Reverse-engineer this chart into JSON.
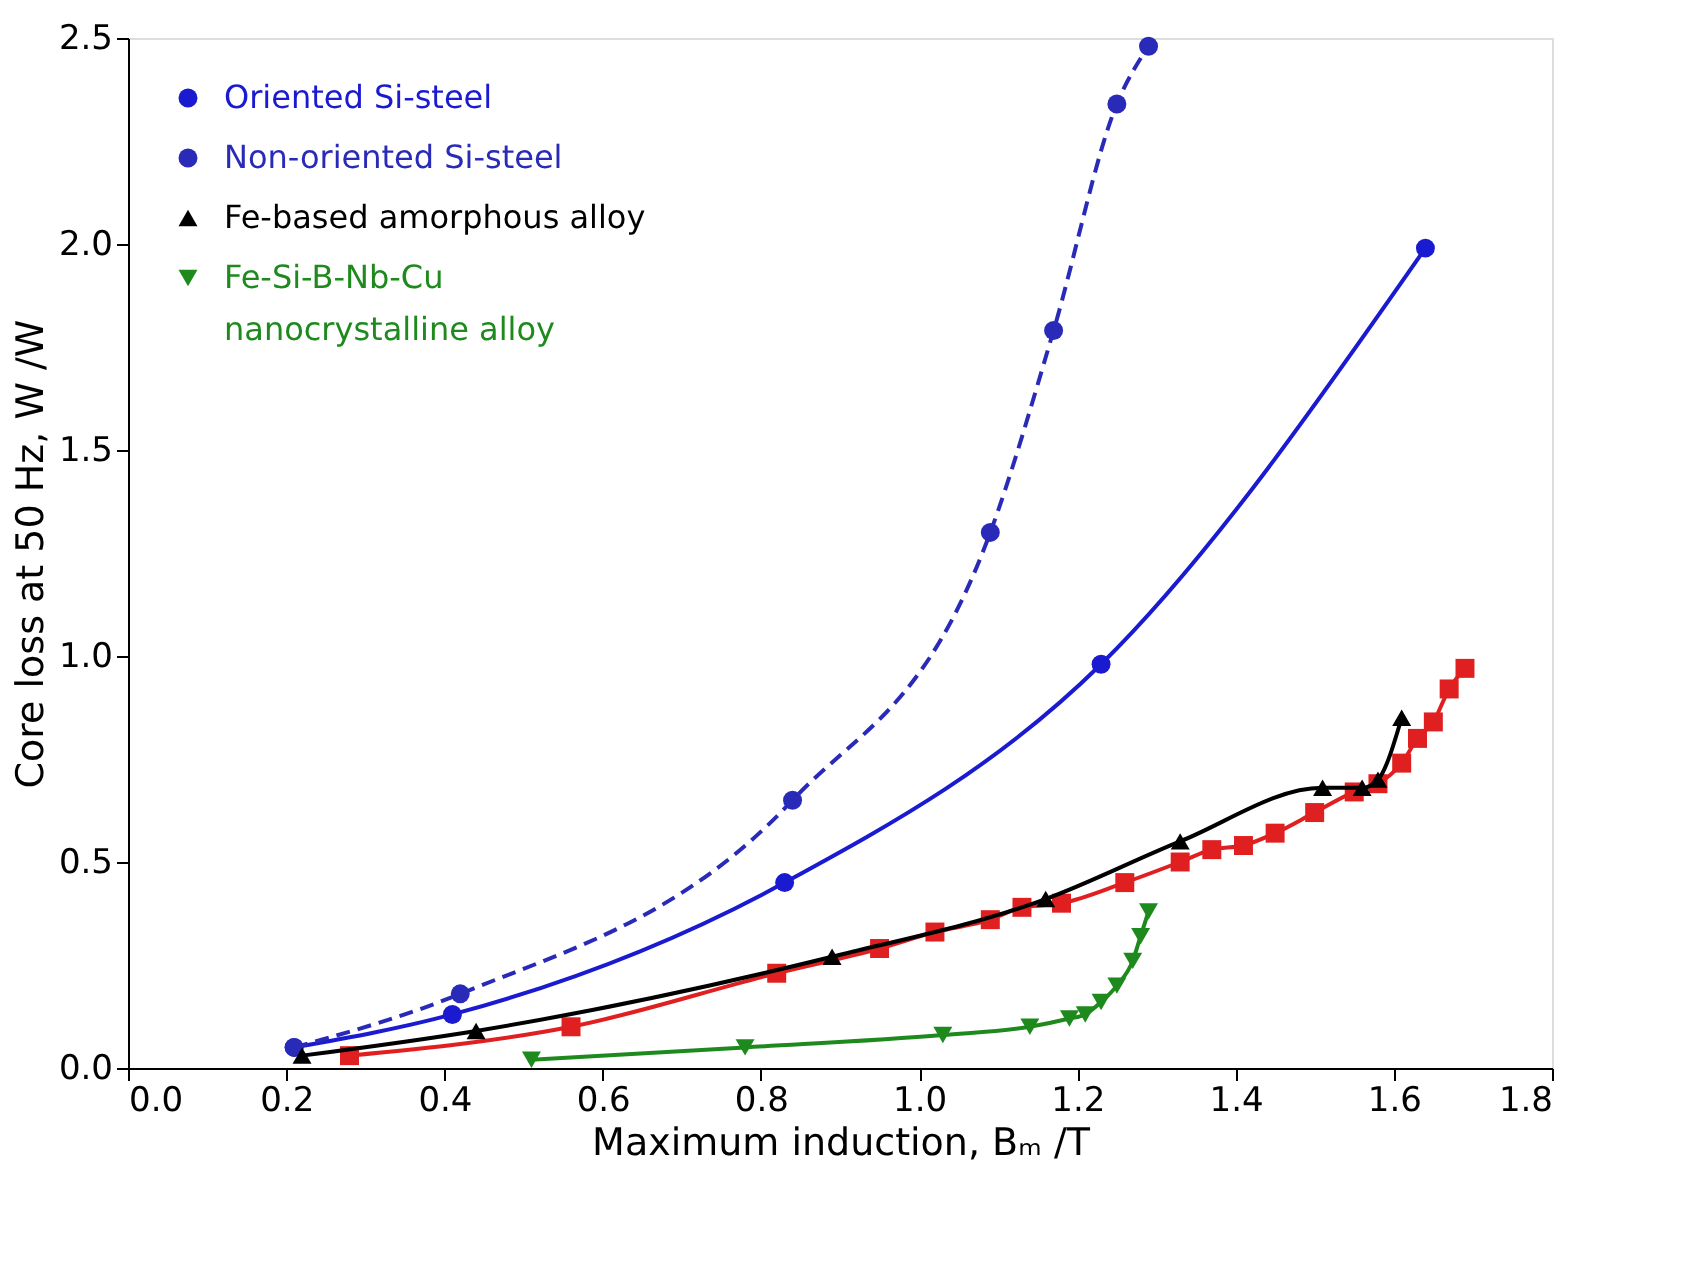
{
  "chart_data": {
    "type": "line",
    "xlabel": "Maximum induction, Bₘ /T",
    "ylabel": "Core loss at 50 Hz, W /W",
    "xlim": [
      0,
      1.8
    ],
    "ylim": [
      0,
      2.5
    ],
    "xticks": [
      {
        "value": 0,
        "label": "0.0"
      },
      {
        "value": 0.2,
        "label": "0.2"
      },
      {
        "value": 0.4,
        "label": "0.4"
      },
      {
        "value": 0.6,
        "label": "0.6"
      },
      {
        "value": 0.8,
        "label": "0.8"
      },
      {
        "value": 1.0,
        "label": "1.0"
      },
      {
        "value": 1.2,
        "label": "1.2"
      },
      {
        "value": 1.4,
        "label": "1.4"
      },
      {
        "value": 1.6,
        "label": "1.6"
      },
      {
        "value": 1.8,
        "label": "1.8"
      }
    ],
    "yticks": [
      {
        "value": 0,
        "label": "0.0"
      },
      {
        "value": 0.5,
        "label": "0.5"
      },
      {
        "value": 1.0,
        "label": "1.0"
      },
      {
        "value": 1.5,
        "label": "1.5"
      },
      {
        "value": 2.0,
        "label": "2.0"
      },
      {
        "value": 2.5,
        "label": "2.5"
      }
    ],
    "grid": false,
    "legend": "top left",
    "series": [
      {
        "color": "#e02020",
        "marker": "square",
        "line_style": "solid",
        "x": [
          0.28,
          0.56,
          0.82,
          0.95,
          1.02,
          1.09,
          1.13,
          1.18,
          1.26,
          1.33,
          1.37,
          1.41,
          1.45,
          1.5,
          1.55,
          1.58,
          1.61,
          1.63,
          1.65,
          1.67,
          1.69
        ],
        "values": [
          0.03,
          0.1,
          0.23,
          0.29,
          0.33,
          0.36,
          0.39,
          0.4,
          0.45,
          0.5,
          0.53,
          0.54,
          0.57,
          0.62,
          0.67,
          0.69,
          0.74,
          0.8,
          0.84,
          0.92,
          0.97
        ]
      },
      {
        "name": "Oriented Si-steel",
        "color": "#1a1ad0",
        "marker": "circle",
        "line_style": "solid",
        "x": [
          0.21,
          0.41,
          0.83,
          1.23,
          1.64
        ],
        "values": [
          0.05,
          0.13,
          0.45,
          0.98,
          1.99
        ]
      },
      {
        "name": "Non-oriented Si-steel",
        "color": "#2a2ab8",
        "marker": "circle",
        "line_style": "dashed",
        "x": [
          0.21,
          0.42,
          0.84,
          1.09,
          1.17,
          1.25,
          1.29
        ],
        "values": [
          0.05,
          0.18,
          0.65,
          1.3,
          1.79,
          2.34,
          2.48
        ]
      },
      {
        "name": "Fe-based amorphous alloy",
        "color": "#000000",
        "marker": "triangle",
        "line_style": "solid",
        "x": [
          0.22,
          0.44,
          0.89,
          1.16,
          1.33,
          1.51,
          1.56,
          1.58,
          1.61
        ],
        "values": [
          0.03,
          0.09,
          0.27,
          0.41,
          0.55,
          0.68,
          0.68,
          0.7,
          0.85
        ]
      },
      {
        "name": "Fe-Si-B-Nb-Cu\n nanocrystalline alloy",
        "color": "#1e8a1e",
        "marker": "triangle-down",
        "line_style": "solid",
        "x": [
          0.51,
          0.78,
          1.03,
          1.14,
          1.19,
          1.21,
          1.23,
          1.25,
          1.27,
          1.28,
          1.29
        ],
        "values": [
          0.02,
          0.05,
          0.08,
          0.1,
          0.12,
          0.13,
          0.16,
          0.2,
          0.26,
          0.32,
          0.38
        ]
      }
    ]
  }
}
